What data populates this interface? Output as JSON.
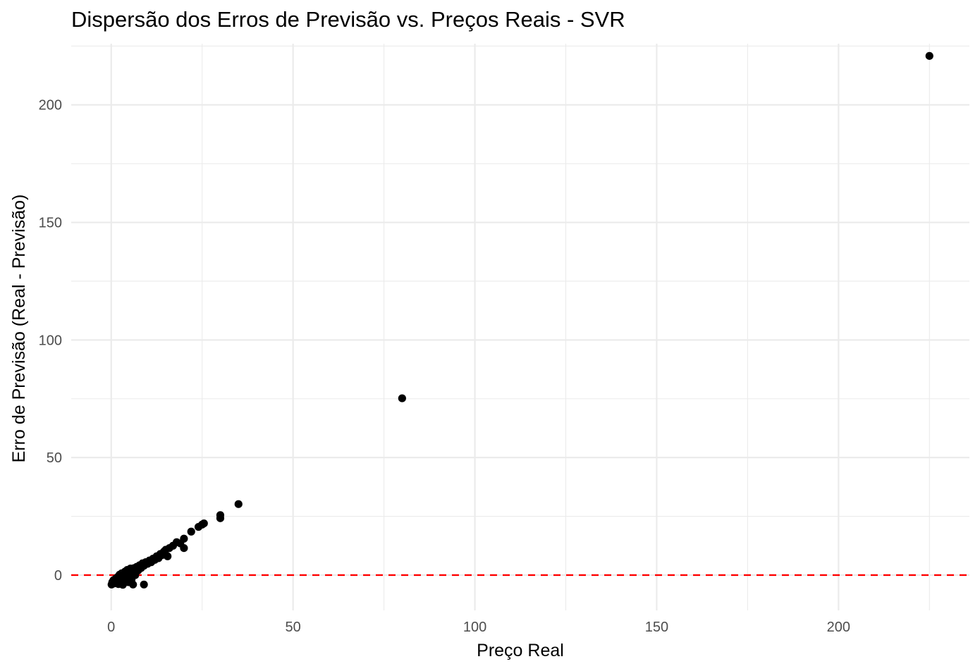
{
  "chart_data": {
    "type": "scatter",
    "title": "Dispersão dos Erros de Previsão vs. Preços Reais - SVR",
    "xlabel": "Preço Real",
    "ylabel": "Erro de Previsão (Real - Previsão)",
    "xlim": [
      -11,
      236
    ],
    "ylim": [
      -15,
      226
    ],
    "x_ticks": [
      0,
      50,
      100,
      150,
      200
    ],
    "y_ticks": [
      0,
      50,
      100,
      150,
      200
    ],
    "x_tick_labels": [
      "0",
      "50",
      "100",
      "150",
      "200"
    ],
    "y_tick_labels": [
      "0",
      "50",
      "100",
      "150",
      "200"
    ],
    "grid": true,
    "reference_line": {
      "y": 0,
      "color": "#ff0000",
      "style": "dashed"
    },
    "point_color": "#000000",
    "points": [
      {
        "x": 0.1,
        "y": -4.0
      },
      {
        "x": 0.3,
        "y": -3.0
      },
      {
        "x": 0.6,
        "y": -2.2
      },
      {
        "x": 0.9,
        "y": -3.5
      },
      {
        "x": 1.2,
        "y": -1.5
      },
      {
        "x": 1.5,
        "y": -2.8
      },
      {
        "x": 1.8,
        "y": -0.8
      },
      {
        "x": 2.0,
        "y": -3.8
      },
      {
        "x": 2.3,
        "y": 0.2
      },
      {
        "x": 2.6,
        "y": -2.0
      },
      {
        "x": 2.9,
        "y": 0.8
      },
      {
        "x": 3.2,
        "y": -4.1
      },
      {
        "x": 3.5,
        "y": -1.2
      },
      {
        "x": 3.8,
        "y": 1.5
      },
      {
        "x": 4.1,
        "y": -0.5
      },
      {
        "x": 4.4,
        "y": 2.2
      },
      {
        "x": 4.7,
        "y": -3.0
      },
      {
        "x": 5.0,
        "y": 0.5
      },
      {
        "x": 5.3,
        "y": 2.8
      },
      {
        "x": 5.6,
        "y": -1.8
      },
      {
        "x": 5.9,
        "y": 1.2
      },
      {
        "x": 6.0,
        "y": -4.0
      },
      {
        "x": 6.3,
        "y": 3.0
      },
      {
        "x": 6.6,
        "y": 0.0
      },
      {
        "x": 7.0,
        "y": 3.5
      },
      {
        "x": 7.4,
        "y": 2.0
      },
      {
        "x": 7.8,
        "y": 4.2
      },
      {
        "x": 8.2,
        "y": 3.0
      },
      {
        "x": 8.6,
        "y": 5.0
      },
      {
        "x": 9.0,
        "y": 4.0
      },
      {
        "x": 9.0,
        "y": -4.0
      },
      {
        "x": 9.5,
        "y": 5.5
      },
      {
        "x": 10.0,
        "y": 4.8
      },
      {
        "x": 10.5,
        "y": 6.2
      },
      {
        "x": 11.0,
        "y": 5.5
      },
      {
        "x": 11.5,
        "y": 7.0
      },
      {
        "x": 12.0,
        "y": 6.5
      },
      {
        "x": 12.5,
        "y": 8.0
      },
      {
        "x": 13.0,
        "y": 7.2
      },
      {
        "x": 13.5,
        "y": 9.0
      },
      {
        "x": 14.0,
        "y": 8.5
      },
      {
        "x": 14.5,
        "y": 10.0
      },
      {
        "x": 15.0,
        "y": 10.8
      },
      {
        "x": 15.5,
        "y": 8.0
      },
      {
        "x": 16.0,
        "y": 11.5
      },
      {
        "x": 17.0,
        "y": 12.5
      },
      {
        "x": 18.0,
        "y": 14.0
      },
      {
        "x": 19.0,
        "y": 13.5
      },
      {
        "x": 20.0,
        "y": 15.5
      },
      {
        "x": 20.0,
        "y": 11.5
      },
      {
        "x": 22.0,
        "y": 18.5
      },
      {
        "x": 24.0,
        "y": 20.5
      },
      {
        "x": 25.0,
        "y": 21.5
      },
      {
        "x": 25.5,
        "y": 22.0
      },
      {
        "x": 30.0,
        "y": 25.5
      },
      {
        "x": 30.0,
        "y": 24.2
      },
      {
        "x": 35.0,
        "y": 30.2
      },
      {
        "x": 80.0,
        "y": 75.2
      },
      {
        "x": 225.0,
        "y": 220.8
      }
    ]
  }
}
